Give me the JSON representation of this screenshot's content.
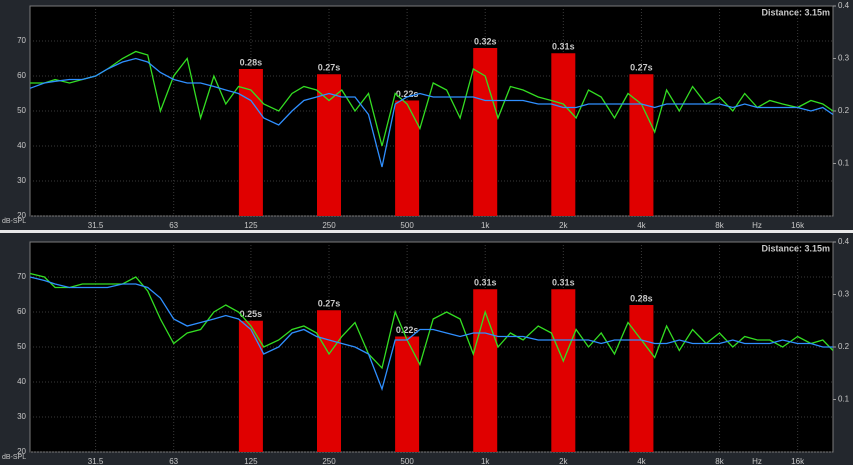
{
  "chart_data": [
    {
      "type": "line",
      "annotation": "Distance: 3.15m",
      "ylabel": "dB-SPL",
      "xlabel": "Hz",
      "log_x": true,
      "grid": true,
      "xlim": [
        17.6,
        21900
      ],
      "xticks": [
        31.5,
        63,
        125,
        250,
        500,
        {
          "value": 1000,
          "label": "1k"
        },
        {
          "value": 2000,
          "label": "2k"
        },
        {
          "value": 4000,
          "label": "4k"
        },
        {
          "value": 8000,
          "label": "8k"
        },
        {
          "value": 16000,
          "label": "16k"
        }
      ],
      "ylim": [
        20,
        80
      ],
      "yticks": [
        20,
        30,
        40,
        50,
        60,
        70
      ],
      "y2lim": [
        0,
        0.4
      ],
      "y2ticks": [
        0.1,
        0.2,
        0.3,
        0.4
      ],
      "x": [
        17.6,
        20,
        22,
        25,
        28,
        31.5,
        35,
        40,
        45,
        50,
        56,
        63,
        71,
        80,
        90,
        100,
        112,
        125,
        140,
        160,
        180,
        200,
        224,
        250,
        280,
        315,
        355,
        400,
        450,
        500,
        560,
        630,
        710,
        800,
        900,
        1000,
        1120,
        1250,
        1400,
        1600,
        1800,
        2000,
        2240,
        2500,
        2800,
        3150,
        3550,
        4000,
        4500,
        5000,
        5600,
        6300,
        7100,
        8000,
        9000,
        10000,
        11200,
        12500,
        14000,
        16000,
        18000,
        20000,
        21900
      ],
      "series": [
        {
          "color": "#33dd22",
          "values": [
            58,
            58,
            59,
            58,
            59,
            60,
            62,
            65,
            67,
            66,
            50,
            60,
            65,
            48,
            60,
            52,
            57,
            56,
            52,
            50,
            55,
            57,
            56,
            53,
            56,
            50,
            55,
            40,
            55,
            52,
            45,
            58,
            56,
            48,
            62,
            60,
            48,
            57,
            56,
            54,
            53,
            52,
            48,
            56,
            54,
            48,
            55,
            52,
            44,
            56,
            50,
            57,
            52,
            54,
            50,
            55,
            51,
            53,
            52,
            51,
            53,
            52,
            50
          ]
        },
        {
          "color": "#2f8fff",
          "values": [
            56.5,
            58,
            58.5,
            59,
            59,
            60,
            62,
            64,
            65,
            64,
            61,
            59,
            58,
            58,
            57,
            56,
            55,
            53,
            48,
            46,
            50,
            53,
            54,
            55,
            54,
            54,
            49,
            34,
            52,
            54,
            55,
            54,
            54,
            54,
            54,
            53,
            53,
            53,
            53,
            52,
            52,
            51,
            51,
            52,
            52,
            52,
            52,
            52,
            51,
            52,
            52,
            52,
            52,
            52,
            51,
            52,
            51,
            51,
            51,
            51,
            50,
            51,
            49
          ]
        },
        {
          "type": "bar",
          "axis": "y2",
          "color": "#e00000",
          "x": [
            125,
            250,
            500,
            1000,
            2000,
            4000
          ],
          "values": [
            0.28,
            0.27,
            0.22,
            0.32,
            0.31,
            0.27
          ],
          "value_labels": [
            "0.28s",
            "0.27s",
            "0.22s",
            "0.32s",
            "0.31s",
            "0.27s"
          ]
        }
      ]
    },
    {
      "type": "line",
      "annotation": "Distance: 3.15m",
      "ylabel": "dB-SPL",
      "xlabel": "Hz",
      "log_x": true,
      "grid": true,
      "xlim": [
        17.6,
        21900
      ],
      "xticks": [
        31.5,
        63,
        125,
        250,
        500,
        {
          "value": 1000,
          "label": "1k"
        },
        {
          "value": 2000,
          "label": "2k"
        },
        {
          "value": 4000,
          "label": "4k"
        },
        {
          "value": 8000,
          "label": "8k"
        },
        {
          "value": 16000,
          "label": "16k"
        }
      ],
      "ylim": [
        20,
        80
      ],
      "yticks": [
        20,
        30,
        40,
        50,
        60,
        70
      ],
      "y2lim": [
        0,
        0.4
      ],
      "y2ticks": [
        0.1,
        0.2,
        0.3,
        0.4
      ],
      "x": [
        17.6,
        20,
        22,
        25,
        28,
        31.5,
        35,
        40,
        45,
        50,
        56,
        63,
        71,
        80,
        90,
        100,
        112,
        125,
        140,
        160,
        180,
        200,
        224,
        250,
        280,
        315,
        355,
        400,
        450,
        500,
        560,
        630,
        710,
        800,
        900,
        1000,
        1120,
        1250,
        1400,
        1600,
        1800,
        2000,
        2240,
        2500,
        2800,
        3150,
        3550,
        4000,
        4500,
        5000,
        5600,
        6300,
        7100,
        8000,
        9000,
        10000,
        11200,
        12500,
        14000,
        16000,
        18000,
        20000,
        21900
      ],
      "series": [
        {
          "color": "#33dd22",
          "values": [
            71,
            70,
            67,
            67,
            68,
            68,
            68,
            68,
            70,
            66,
            58,
            51,
            54,
            55,
            60,
            62,
            60,
            56,
            50,
            52,
            55,
            56,
            54,
            48,
            53,
            57,
            48,
            44,
            60,
            52,
            45,
            58,
            60,
            58,
            48,
            60,
            50,
            54,
            52,
            56,
            54,
            46,
            55,
            50,
            54,
            48,
            57,
            52,
            47,
            56,
            49,
            55,
            51,
            54,
            50,
            53,
            52,
            52,
            50,
            53,
            51,
            52,
            49
          ]
        },
        {
          "color": "#2f8fff",
          "values": [
            70,
            69,
            68,
            67,
            67,
            67,
            67,
            68,
            68,
            67,
            64,
            58,
            56,
            57,
            58,
            59,
            58,
            55,
            48,
            50,
            54,
            55,
            53,
            52,
            51,
            50,
            48,
            38,
            52,
            52,
            55,
            55,
            54,
            53,
            54,
            54,
            53,
            53,
            53,
            52,
            52,
            52,
            52,
            52,
            51,
            52,
            52,
            52,
            51,
            51,
            52,
            51,
            51,
            51,
            52,
            51,
            51,
            51,
            52,
            51,
            51,
            50,
            50
          ]
        },
        {
          "type": "bar",
          "axis": "y2",
          "color": "#e00000",
          "x": [
            125,
            250,
            500,
            1000,
            2000,
            4000
          ],
          "values": [
            0.25,
            0.27,
            0.22,
            0.31,
            0.31,
            0.28
          ],
          "value_labels": [
            "0.25s",
            "0.27s",
            "0.22s",
            "0.31s",
            "0.31s",
            "0.28s"
          ]
        }
      ]
    }
  ]
}
